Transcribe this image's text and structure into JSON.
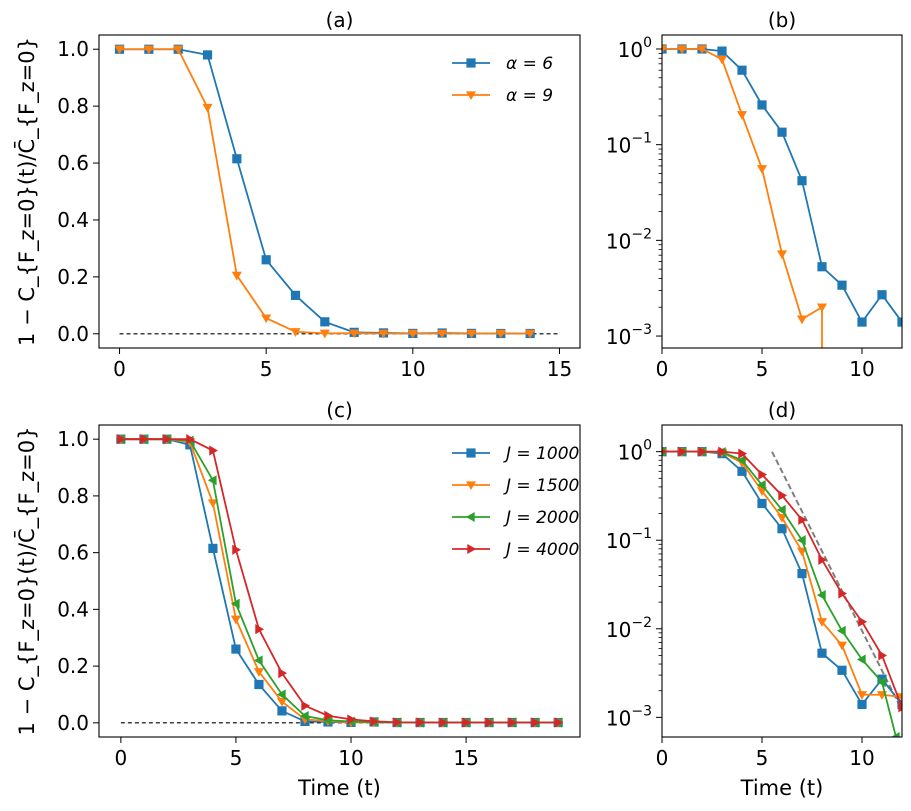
{
  "colors": {
    "blue": "#1f77b4",
    "orange": "#ff7f0e",
    "green": "#2ca02c",
    "red": "#d62728",
    "guide": "#808080"
  },
  "chart_data": [
    {
      "panel": "a",
      "type": "line",
      "title": "(a)",
      "xlabel": "",
      "ylabel": "1 − C_{F_z=0}(t)/C̄_{F_z=0}",
      "xlim": [
        -0.7,
        15.7
      ],
      "ylim": [
        -0.05,
        1.05
      ],
      "xticks": [
        0,
        5,
        10,
        15
      ],
      "yticks": [
        0.0,
        0.2,
        0.4,
        0.6,
        0.8,
        1.0
      ],
      "ytick_labels": [
        "0.0",
        "0.2",
        "0.4",
        "0.6",
        "0.8",
        "1.0"
      ],
      "legend": "top-right",
      "reference_line": {
        "x": [
          0,
          15
        ],
        "y": [
          0,
          0
        ],
        "style": "dashed"
      },
      "series": [
        {
          "name": "α = 6",
          "marker": "square",
          "color": "blue",
          "x": [
            0,
            1,
            2,
            3,
            4,
            5,
            6,
            7,
            8,
            9,
            10,
            11,
            12,
            13,
            14
          ],
          "y": [
            1.0,
            1.0,
            1.0,
            0.98,
            0.615,
            0.26,
            0.135,
            0.042,
            0.005,
            0.003,
            0.0013,
            0.0027,
            0.0014,
            0.001,
            0.001
          ]
        },
        {
          "name": "α = 9",
          "marker": "triangle-down",
          "color": "orange",
          "x": [
            0,
            1,
            2,
            3,
            4,
            5,
            6,
            7,
            8,
            9,
            10,
            11,
            12,
            13,
            14
          ],
          "y": [
            1.0,
            1.0,
            1.0,
            0.795,
            0.205,
            0.055,
            0.007,
            0.0015,
            0.002,
            0.001,
            0.001,
            0.001,
            0.001,
            0.001,
            0.001
          ]
        }
      ]
    },
    {
      "panel": "b",
      "type": "line",
      "title": "(b)",
      "yscale": "log",
      "xlim": [
        0,
        12
      ],
      "ylim": [
        0.00075,
        1.4
      ],
      "xticks": [
        0,
        5,
        10
      ],
      "yticks_exponents": [
        0,
        -1,
        -2,
        -3
      ],
      "series": [
        {
          "name": "α = 6",
          "marker": "square",
          "color": "blue",
          "x": [
            0,
            1,
            2,
            3,
            4,
            5,
            6,
            7,
            8,
            9,
            10,
            11,
            12
          ],
          "y": [
            1.0,
            1.0,
            1.0,
            0.95,
            0.6,
            0.26,
            0.135,
            0.042,
            0.0053,
            0.0034,
            0.0014,
            0.0027,
            0.0014
          ]
        },
        {
          "name": "α = 9",
          "marker": "triangle-down",
          "color": "orange",
          "x": [
            0,
            1,
            2,
            3,
            4,
            5,
            6,
            7,
            8
          ],
          "y": [
            1.0,
            1.0,
            1.0,
            0.78,
            0.205,
            0.056,
            0.0072,
            0.0015,
            0.002
          ],
          "drop_to_zero_after": true
        }
      ]
    },
    {
      "panel": "c",
      "type": "line",
      "title": "(c)",
      "xlabel": "Time (t)",
      "ylabel": "1 − C_{F_z=0}(t)/C̄_{F_z=0}",
      "xlim": [
        -0.95,
        19.95
      ],
      "ylim": [
        -0.05,
        1.05
      ],
      "xticks": [
        0,
        5,
        10,
        15
      ],
      "yticks": [
        0.0,
        0.2,
        0.4,
        0.6,
        0.8,
        1.0
      ],
      "ytick_labels": [
        "0.0",
        "0.2",
        "0.4",
        "0.6",
        "0.8",
        "1.0"
      ],
      "legend": "top-right",
      "reference_line": {
        "x": [
          0,
          19
        ],
        "y": [
          0,
          0
        ],
        "style": "dashed"
      },
      "series": [
        {
          "name": "J = 1000",
          "marker": "square",
          "color": "blue",
          "x": [
            0,
            1,
            2,
            3,
            4,
            5,
            6,
            7,
            8,
            9,
            10,
            11,
            12,
            13,
            14,
            15,
            16,
            17,
            18,
            19
          ],
          "y": [
            1.0,
            1.0,
            1.0,
            0.98,
            0.615,
            0.26,
            0.135,
            0.042,
            0.005,
            0.003,
            0.0015,
            0.003,
            0.001,
            0.001,
            0.001,
            0.001,
            0.001,
            0.001,
            0.001,
            0.001
          ]
        },
        {
          "name": "J = 1500",
          "marker": "triangle-down",
          "color": "orange",
          "x": [
            0,
            1,
            2,
            3,
            4,
            5,
            6,
            7,
            8,
            9,
            10,
            11,
            12,
            13,
            14,
            15,
            16,
            17,
            18,
            19
          ],
          "y": [
            1.0,
            1.0,
            1.0,
            0.99,
            0.775,
            0.365,
            0.18,
            0.075,
            0.012,
            0.006,
            0.0018,
            0.0018,
            0.001,
            0.001,
            0.001,
            0.001,
            0.001,
            0.001,
            0.001,
            0.001
          ]
        },
        {
          "name": "J = 2000",
          "marker": "triangle-left",
          "color": "green",
          "x": [
            0,
            1,
            2,
            3,
            4,
            5,
            6,
            7,
            8,
            9,
            10,
            11,
            12,
            13,
            14,
            15,
            16,
            17,
            18,
            19
          ],
          "y": [
            1.0,
            1.0,
            1.0,
            0.995,
            0.855,
            0.42,
            0.22,
            0.1,
            0.024,
            0.009,
            0.0045,
            0.0025,
            0.001,
            0.001,
            0.001,
            0.001,
            0.001,
            0.001,
            0.001,
            0.001
          ]
        },
        {
          "name": "J = 4000",
          "marker": "triangle-right",
          "color": "red",
          "x": [
            0,
            1,
            2,
            3,
            4,
            5,
            6,
            7,
            8,
            9,
            10,
            11,
            12,
            13,
            14,
            15,
            16,
            17,
            18,
            19
          ],
          "y": [
            1.0,
            1.0,
            1.0,
            1.0,
            0.96,
            0.61,
            0.33,
            0.175,
            0.06,
            0.025,
            0.012,
            0.005,
            0.002,
            0.0015,
            0.001,
            0.001,
            0.001,
            0.001,
            0.001,
            0.001
          ]
        }
      ]
    },
    {
      "panel": "d",
      "type": "line",
      "title": "(d)",
      "xlabel": "Time (t)",
      "yscale": "log",
      "xlim": [
        0,
        12
      ],
      "ylim": [
        0.0006,
        2.0
      ],
      "xticks": [
        0,
        5,
        10
      ],
      "yticks_exponents": [
        0,
        -1,
        -2,
        -3
      ],
      "guide_line": {
        "x": [
          5.5,
          12
        ],
        "y": [
          1.0,
          0.0012
        ],
        "style": "dashed"
      },
      "series": [
        {
          "name": "J = 1000",
          "marker": "square",
          "color": "blue",
          "x": [
            0,
            1,
            2,
            3,
            4,
            5,
            6,
            7,
            8,
            9,
            10,
            11,
            12
          ],
          "y": [
            1.0,
            1.0,
            1.0,
            0.95,
            0.6,
            0.26,
            0.135,
            0.042,
            0.0053,
            0.0034,
            0.0014,
            0.0027,
            0.0014
          ]
        },
        {
          "name": "J = 1500",
          "marker": "triangle-down",
          "color": "orange",
          "x": [
            0,
            1,
            2,
            3,
            4,
            5,
            6,
            7,
            8,
            9,
            10,
            11,
            12
          ],
          "y": [
            1.0,
            1.0,
            1.0,
            0.98,
            0.75,
            0.36,
            0.18,
            0.075,
            0.012,
            0.0065,
            0.0018,
            0.0018,
            0.0017
          ]
        },
        {
          "name": "J = 2000",
          "marker": "triangle-left",
          "color": "green",
          "x": [
            0,
            1,
            2,
            3,
            4,
            5,
            6,
            7,
            8,
            9,
            10,
            11,
            11.7
          ],
          "y": [
            1.0,
            1.0,
            1.0,
            0.99,
            0.8,
            0.42,
            0.22,
            0.1,
            0.024,
            0.0095,
            0.0045,
            0.0025,
            0.0006
          ]
        },
        {
          "name": "J = 4000",
          "marker": "triangle-right",
          "color": "red",
          "x": [
            0,
            1,
            2,
            3,
            4,
            5,
            6,
            7,
            8,
            9,
            10,
            11,
            12
          ],
          "y": [
            1.0,
            1.0,
            1.0,
            1.0,
            0.95,
            0.55,
            0.32,
            0.17,
            0.06,
            0.025,
            0.012,
            0.005,
            0.0013
          ]
        }
      ]
    }
  ]
}
